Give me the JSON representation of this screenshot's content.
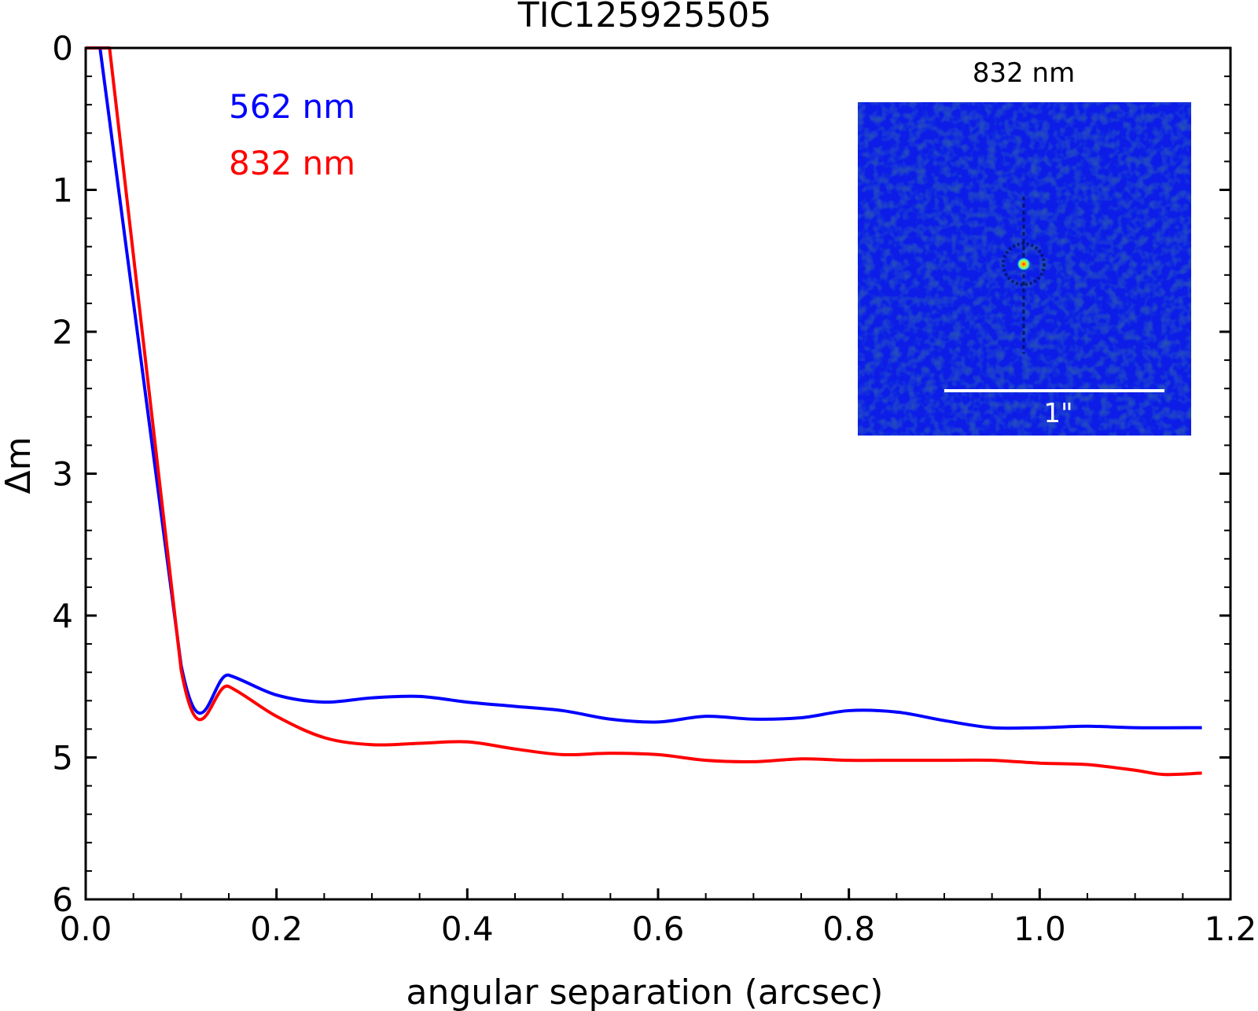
{
  "chart_data": {
    "type": "line",
    "title": "TIC125925505",
    "xlabel": "angular separation (arcsec)",
    "ylabel": "Δm",
    "xlim": [
      0.0,
      1.2
    ],
    "ylim": [
      6,
      0
    ],
    "y_inverted": true,
    "x_ticks": [
      "0.0",
      "0.2",
      "0.4",
      "0.6",
      "0.8",
      "1.0",
      "1.2"
    ],
    "y_ticks": [
      "0",
      "1",
      "2",
      "3",
      "4",
      "5",
      "6"
    ],
    "legend_position": "top-left",
    "series": [
      {
        "name": "562 nm",
        "color": "#0000ff",
        "x": [
          0.0,
          0.015,
          0.1,
          0.15,
          0.2,
          0.25,
          0.3,
          0.35,
          0.4,
          0.45,
          0.5,
          0.55,
          0.6,
          0.65,
          0.7,
          0.75,
          0.8,
          0.85,
          0.9,
          0.95,
          1.0,
          1.05,
          1.1,
          1.17
        ],
        "values": [
          0.0,
          0.0,
          4.35,
          4.42,
          4.56,
          4.61,
          4.58,
          4.57,
          4.61,
          4.64,
          4.67,
          4.73,
          4.75,
          4.71,
          4.73,
          4.72,
          4.67,
          4.68,
          4.74,
          4.79,
          4.79,
          4.78,
          4.79,
          4.79
        ]
      },
      {
        "name": "832 nm",
        "color": "#ff0000",
        "x": [
          0.0,
          0.025,
          0.1,
          0.15,
          0.2,
          0.25,
          0.3,
          0.35,
          0.4,
          0.45,
          0.5,
          0.55,
          0.6,
          0.65,
          0.7,
          0.75,
          0.8,
          0.85,
          0.9,
          0.95,
          1.0,
          1.05,
          1.1,
          1.13,
          1.17
        ],
        "values": [
          0.0,
          0.0,
          4.38,
          4.5,
          4.71,
          4.86,
          4.91,
          4.9,
          4.89,
          4.94,
          4.98,
          4.97,
          4.98,
          5.02,
          5.03,
          5.01,
          5.02,
          5.02,
          5.02,
          5.02,
          5.04,
          5.05,
          5.09,
          5.12,
          5.11
        ]
      }
    ],
    "inset": {
      "title": "832 nm",
      "scale_bar_label": "1\"",
      "background_color": "#0a1fe6"
    }
  }
}
